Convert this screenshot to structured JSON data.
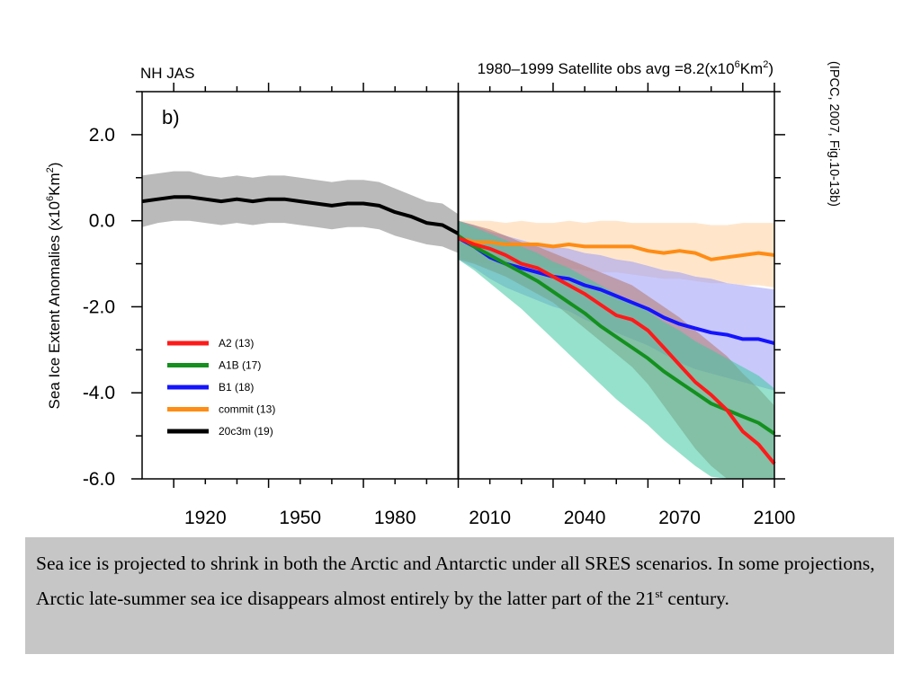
{
  "chart_data": {
    "type": "line",
    "panel_label": "b)",
    "season_label": "NH JAS",
    "title_right_prefix": "1980–1999 Satellite obs avg =8.2(x10",
    "title_right_exp": "6",
    "title_right_unit": "Km",
    "title_right_unit_exp": "2",
    "title_right_close": ")",
    "ylabel": "Sea Ice Extent Anomalies (x10",
    "ylabel_exp1": "6",
    "ylabel_unit": "Km",
    "ylabel_exp2": "2",
    "ylabel_close": ")",
    "xlim": [
      1900,
      2100
    ],
    "ylim": [
      -6.0,
      3.0
    ],
    "x_ticks": [
      "1920",
      "1950",
      "1980",
      "2010",
      "2040",
      "2070",
      "2100"
    ],
    "x_tick_values": [
      1920,
      1950,
      1980,
      2010,
      2040,
      2070,
      2100
    ],
    "y_ticks": [
      "2.0",
      "0.0",
      "-2.0",
      "-4.0",
      "-6.0"
    ],
    "y_tick_values": [
      2,
      0,
      -2,
      -4,
      -6
    ],
    "divider_x": 2000,
    "grid": false,
    "legend_position": "lower-left",
    "series": [
      {
        "name": "A2 (13)",
        "color": "#ff1a1a",
        "band_color": "#b4786c",
        "x": [
          2000,
          2005,
          2010,
          2015,
          2020,
          2025,
          2030,
          2035,
          2040,
          2045,
          2050,
          2055,
          2060,
          2065,
          2070,
          2075,
          2080,
          2085,
          2090,
          2095,
          2100
        ],
        "values": [
          -0.4,
          -0.55,
          -0.65,
          -0.8,
          -1.0,
          -1.1,
          -1.3,
          -1.5,
          -1.7,
          -1.95,
          -2.2,
          -2.3,
          -2.55,
          -2.95,
          -3.35,
          -3.75,
          -4.05,
          -4.4,
          -4.9,
          -5.2,
          -5.65
        ],
        "lower": [
          -0.9,
          -1.0,
          -1.15,
          -1.3,
          -1.5,
          -1.7,
          -1.9,
          -2.2,
          -2.5,
          -2.8,
          -3.1,
          -3.4,
          -3.8,
          -4.3,
          -4.8,
          -5.3,
          -5.7,
          -6.0,
          -6.0,
          -6.0,
          -6.0
        ],
        "upper": [
          0.0,
          -0.1,
          -0.2,
          -0.35,
          -0.5,
          -0.6,
          -0.75,
          -0.9,
          -1.05,
          -1.2,
          -1.35,
          -1.5,
          -1.75,
          -2.0,
          -2.25,
          -2.55,
          -2.85,
          -3.15,
          -3.55,
          -3.9,
          -4.3
        ]
      },
      {
        "name": "A1B (17)",
        "color": "#14901e",
        "band_color": "#40c8a0",
        "x": [
          2000,
          2005,
          2010,
          2015,
          2020,
          2025,
          2030,
          2035,
          2040,
          2045,
          2050,
          2055,
          2060,
          2065,
          2070,
          2075,
          2080,
          2085,
          2090,
          2095,
          2100
        ],
        "values": [
          -0.35,
          -0.6,
          -0.8,
          -1.0,
          -1.2,
          -1.4,
          -1.65,
          -1.9,
          -2.15,
          -2.45,
          -2.7,
          -2.95,
          -3.2,
          -3.5,
          -3.75,
          -4.0,
          -4.25,
          -4.4,
          -4.55,
          -4.7,
          -4.95
        ],
        "lower": [
          -0.9,
          -1.15,
          -1.45,
          -1.75,
          -2.05,
          -2.4,
          -2.75,
          -3.1,
          -3.45,
          -3.8,
          -4.15,
          -4.45,
          -4.75,
          -5.1,
          -5.4,
          -5.7,
          -5.95,
          -6.0,
          -6.0,
          -6.0,
          -6.0
        ],
        "upper": [
          0.0,
          -0.15,
          -0.3,
          -0.45,
          -0.6,
          -0.75,
          -0.95,
          -1.1,
          -1.3,
          -1.5,
          -1.7,
          -1.9,
          -2.1,
          -2.35,
          -2.55,
          -2.8,
          -3.0,
          -3.2,
          -3.4,
          -3.6,
          -3.9
        ]
      },
      {
        "name": "B1 (18)",
        "color": "#1414ff",
        "band_color": "#9a9af8",
        "x": [
          2000,
          2005,
          2010,
          2015,
          2020,
          2025,
          2030,
          2035,
          2040,
          2045,
          2050,
          2055,
          2060,
          2065,
          2070,
          2075,
          2080,
          2085,
          2090,
          2095,
          2100
        ],
        "values": [
          -0.4,
          -0.6,
          -0.85,
          -1.0,
          -1.1,
          -1.2,
          -1.3,
          -1.35,
          -1.5,
          -1.6,
          -1.75,
          -1.9,
          -2.05,
          -2.25,
          -2.4,
          -2.5,
          -2.6,
          -2.65,
          -2.75,
          -2.75,
          -2.85
        ],
        "lower": [
          -0.9,
          -1.1,
          -1.35,
          -1.55,
          -1.7,
          -1.85,
          -2.0,
          -2.1,
          -2.3,
          -2.45,
          -2.6,
          -2.75,
          -2.9,
          -3.1,
          -3.3,
          -3.45,
          -3.55,
          -3.65,
          -3.75,
          -3.85,
          -3.95
        ],
        "upper": [
          0.0,
          -0.1,
          -0.25,
          -0.35,
          -0.45,
          -0.55,
          -0.6,
          -0.65,
          -0.75,
          -0.8,
          -0.9,
          -0.95,
          -1.05,
          -1.15,
          -1.2,
          -1.3,
          -1.35,
          -1.45,
          -1.5,
          -1.55,
          -1.6
        ]
      },
      {
        "name": "commit (13)",
        "color": "#ff8c14",
        "band_color": "#ffd2a0",
        "x": [
          2000,
          2005,
          2010,
          2015,
          2020,
          2025,
          2030,
          2035,
          2040,
          2045,
          2050,
          2055,
          2060,
          2065,
          2070,
          2075,
          2080,
          2085,
          2090,
          2095,
          2100
        ],
        "values": [
          -0.4,
          -0.5,
          -0.5,
          -0.55,
          -0.55,
          -0.55,
          -0.6,
          -0.55,
          -0.6,
          -0.6,
          -0.6,
          -0.6,
          -0.7,
          -0.75,
          -0.7,
          -0.75,
          -0.9,
          -0.85,
          -0.8,
          -0.75,
          -0.8
        ],
        "lower": [
          -0.85,
          -0.95,
          -1.0,
          -1.0,
          -1.05,
          -1.05,
          -1.1,
          -1.1,
          -1.15,
          -1.2,
          -1.2,
          -1.25,
          -1.3,
          -1.35,
          -1.35,
          -1.4,
          -1.45,
          -1.45,
          -1.5,
          -1.5,
          -1.55
        ],
        "upper": [
          0.0,
          0.0,
          0.0,
          -0.05,
          0.0,
          -0.05,
          -0.05,
          0.0,
          -0.05,
          0.0,
          0.0,
          -0.05,
          -0.05,
          -0.05,
          -0.05,
          -0.05,
          -0.1,
          -0.1,
          -0.05,
          -0.05,
          -0.05
        ]
      },
      {
        "name": "20c3m (19)",
        "color": "#000000",
        "band_color": "#b3b3b3",
        "x": [
          1900,
          1905,
          1910,
          1915,
          1920,
          1925,
          1930,
          1935,
          1940,
          1945,
          1950,
          1955,
          1960,
          1965,
          1970,
          1975,
          1980,
          1985,
          1990,
          1995,
          2000
        ],
        "values": [
          0.45,
          0.5,
          0.55,
          0.55,
          0.5,
          0.45,
          0.5,
          0.45,
          0.5,
          0.5,
          0.45,
          0.4,
          0.35,
          0.4,
          0.4,
          0.35,
          0.2,
          0.1,
          -0.05,
          -0.1,
          -0.3
        ],
        "lower": [
          -0.15,
          -0.05,
          0.0,
          0.0,
          -0.05,
          -0.1,
          -0.05,
          -0.1,
          -0.05,
          -0.05,
          -0.1,
          -0.15,
          -0.2,
          -0.15,
          -0.15,
          -0.2,
          -0.35,
          -0.45,
          -0.55,
          -0.6,
          -0.75
        ],
        "upper": [
          1.05,
          1.1,
          1.15,
          1.15,
          1.05,
          1.0,
          1.05,
          1.0,
          1.05,
          1.05,
          1.0,
          0.95,
          0.9,
          0.95,
          0.95,
          0.9,
          0.75,
          0.6,
          0.45,
          0.4,
          0.15
        ]
      }
    ]
  },
  "side_note": "(IPCC, 2007, Fig.10-13b)",
  "caption": {
    "text_main": "Sea ice is projected to shrink in both the Arctic and Antarctic under all SRES scenarios. In some projections, Arctic late-summer sea ice disappears almost entirely by the latter part of the 21",
    "superscript": "st",
    "text_end": " century."
  }
}
